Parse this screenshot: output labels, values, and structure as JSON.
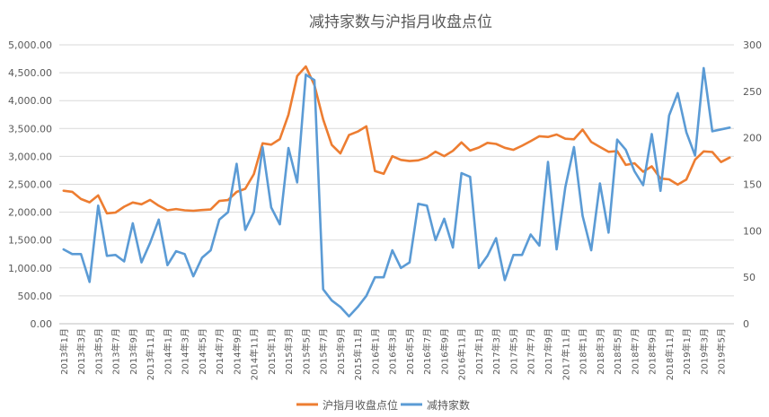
{
  "chart_data": {
    "type": "line",
    "title": "减持家数与沪指月收盘点位",
    "x": [
      "2013年1月",
      "2013年2月",
      "2013年3月",
      "2013年4月",
      "2013年5月",
      "2013年6月",
      "2013年7月",
      "2013年8月",
      "2013年9月",
      "2013年10月",
      "2013年11月",
      "2013年12月",
      "2014年1月",
      "2014年2月",
      "2014年3月",
      "2014年4月",
      "2014年5月",
      "2014年6月",
      "2014年7月",
      "2014年8月",
      "2014年9月",
      "2014年10月",
      "2014年11月",
      "2014年12月",
      "2015年1月",
      "2015年2月",
      "2015年3月",
      "2015年4月",
      "2015年5月",
      "2015年6月",
      "2015年7月",
      "2015年8月",
      "2015年9月",
      "2015年10月",
      "2015年11月",
      "2015年12月",
      "2016年1月",
      "2016年2月",
      "2016年3月",
      "2016年4月",
      "2016年5月",
      "2016年6月",
      "2016年7月",
      "2016年8月",
      "2016年9月",
      "2016年10月",
      "2016年11月",
      "2016年12月",
      "2017年1月",
      "2017年2月",
      "2017年3月",
      "2017年4月",
      "2017年5月",
      "2017年6月",
      "2017年7月",
      "2017年8月",
      "2017年9月",
      "2017年10月",
      "2017年11月",
      "2017年12月",
      "2018年1月",
      "2018年2月",
      "2018年3月",
      "2018年4月",
      "2018年5月",
      "2018年6月",
      "2018年7月",
      "2018年8月",
      "2018年9月",
      "2018年10月",
      "2018年11月",
      "2018年12月",
      "2019年1月",
      "2019年2月",
      "2019年3月",
      "2019年4月",
      "2019年5月",
      "2019年6月"
    ],
    "x_tick_labels": [
      "2013年1月",
      "2013年3月",
      "2013年5月",
      "2013年7月",
      "2013年9月",
      "2013年11月",
      "2014年1月",
      "2014年3月",
      "2014年5月",
      "2014年7月",
      "2014年9月",
      "2014年11月",
      "2015年1月",
      "2015年3月",
      "2015年5月",
      "2015年7月",
      "2015年9月",
      "2015年11月",
      "2016年1月",
      "2016年3月",
      "2016年5月",
      "2016年7月",
      "2016年9月",
      "2016年11月",
      "2017年1月",
      "2017年3月",
      "2017年5月",
      "2017年7月",
      "2017年9月",
      "2017年11月",
      "2018年1月",
      "2018年3月",
      "2018年5月",
      "2018年7月",
      "2018年9月",
      "2018年11月",
      "2019年1月",
      "2019年3月",
      "2019年5月"
    ],
    "y_left_ticks": [
      "0.00",
      "500.00",
      "1,000.00",
      "1,500.00",
      "2,000.00",
      "2,500.00",
      "3,000.00",
      "3,500.00",
      "4,000.00",
      "4,500.00",
      "5,000.00"
    ],
    "y_right_ticks": [
      "0",
      "50",
      "100",
      "150",
      "200",
      "250",
      "300"
    ],
    "ylim_left": [
      0,
      5000
    ],
    "ylim_right": [
      0,
      300
    ],
    "grid": true,
    "legend_position": "bottom",
    "series": [
      {
        "name": "沪指月收盘点位",
        "axis": "left",
        "color": "#ED7D31",
        "values": [
          2385,
          2365,
          2237,
          2177,
          2300,
          1979,
          1993,
          2098,
          2174,
          2141,
          2220,
          2116,
          2033,
          2056,
          2033,
          2026,
          2039,
          2048,
          2201,
          2217,
          2364,
          2420,
          2683,
          3234,
          3210,
          3310,
          3748,
          4441,
          4612,
          4277,
          3664,
          3206,
          3053,
          3383,
          3445,
          3539,
          2738,
          2688,
          3004,
          2938,
          2917,
          2930,
          2979,
          3085,
          3005,
          3100,
          3250,
          3104,
          3159,
          3242,
          3223,
          3155,
          3117,
          3192,
          3273,
          3361,
          3349,
          3393,
          3317,
          3307,
          3481,
          3259,
          3169,
          3082,
          3095,
          2847,
          2876,
          2725,
          2821,
          2603,
          2588,
          2494,
          2585,
          2941,
          3090,
          3078,
          2899,
          2979
        ]
      },
      {
        "name": "减持家数",
        "axis": "right",
        "color": "#5B9BD5",
        "values": [
          80,
          75,
          75,
          45,
          127,
          73,
          74,
          67,
          108,
          66,
          87,
          112,
          63,
          78,
          75,
          51,
          71,
          79,
          112,
          120,
          172,
          101,
          120,
          190,
          125,
          107,
          189,
          152,
          268,
          262,
          37,
          25,
          18,
          8,
          18,
          30,
          50,
          50,
          79,
          60,
          66,
          129,
          127,
          90,
          113,
          82,
          162,
          158,
          60,
          73,
          92,
          47,
          74,
          74,
          96,
          84,
          174,
          80,
          147,
          190,
          116,
          79,
          151,
          98,
          198,
          187,
          164,
          149,
          204,
          143,
          224,
          248,
          206,
          181,
          275,
          207,
          209,
          211
        ]
      }
    ]
  }
}
